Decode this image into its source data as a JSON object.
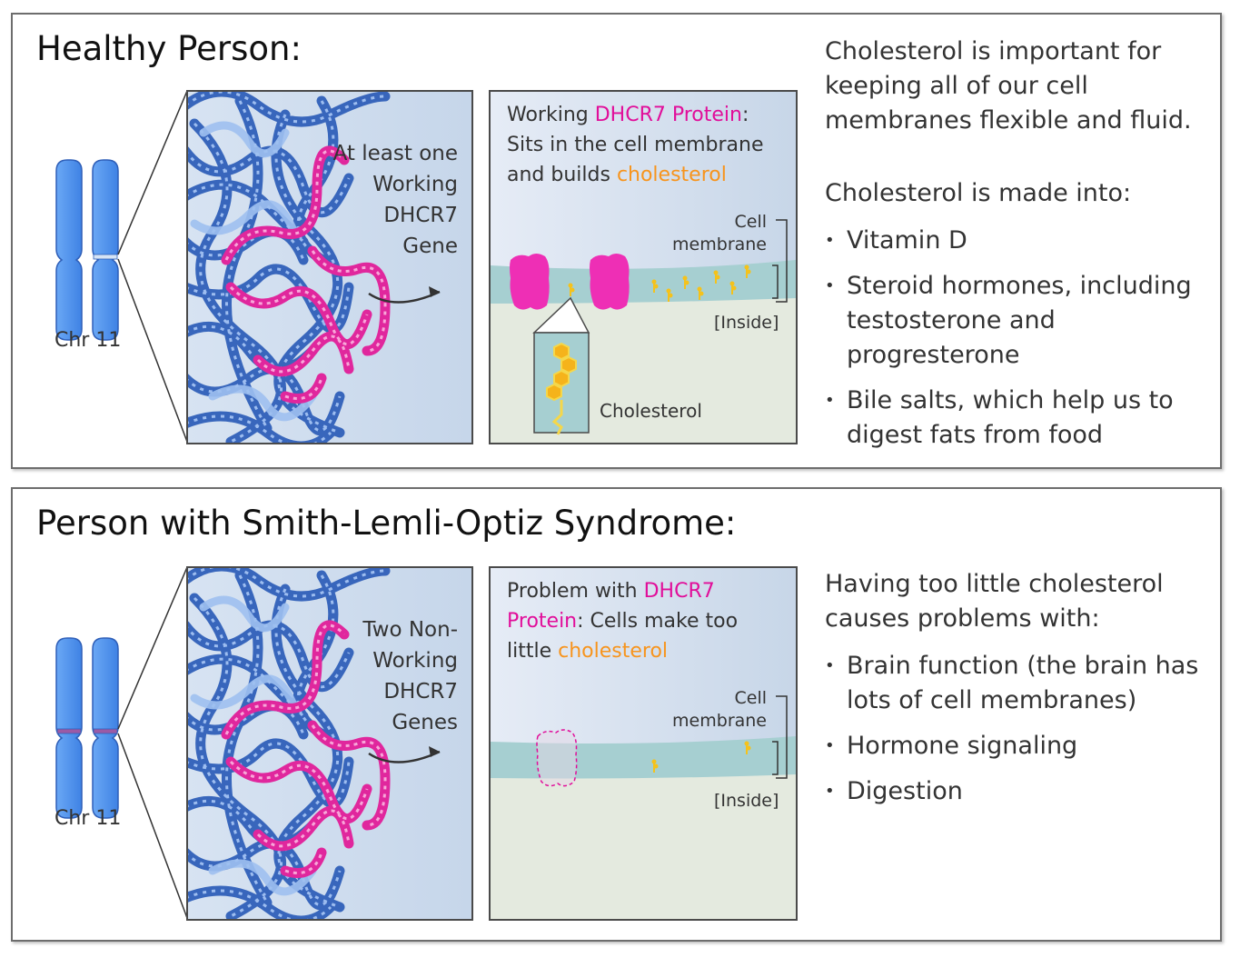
{
  "healthy": {
    "title": "Healthy Person:",
    "chromosome_label": "Chr 11",
    "gene_text": [
      "At least one",
      "Working",
      "DHCR7",
      "Gene"
    ],
    "protein_text": {
      "prefix": "Working ",
      "highlight": "DHCR7 Protein",
      "line2_lead": ":",
      "line2": "Sits in the cell membrane",
      "line3_prefix": "and builds ",
      "line3_highlight": "cholesterol"
    },
    "cell_membrane_label": [
      "Cell",
      "membrane"
    ],
    "inside_label": "[Inside]",
    "cholesterol_label": "Cholesterol",
    "right_text": "Cholesterol is important for keeping all of our cell membranes flexible and fluid.",
    "made_into_heading": "Cholesterol is made into:",
    "bullets": [
      "Vitamin D",
      "Steroid hormones, including testosterone and progresterone",
      "Bile salts, which help us to digest fats from food"
    ]
  },
  "slo": {
    "title": "Person with Smith-Lemli-Optiz Syndrome:",
    "chromosome_label": "Chr 11",
    "gene_text": [
      "Two Non-",
      "Working",
      "DHCR7",
      "Genes"
    ],
    "protein_text": {
      "prefix": "Problem with ",
      "highlight1": "DHCR7",
      "highlight2": "Protein",
      "line2_rest": ": Cells make too",
      "line3_prefix": "little ",
      "line3_highlight": "cholesterol"
    },
    "cell_membrane_label": [
      "Cell",
      "membrane"
    ],
    "inside_label": "[Inside]",
    "right_text": "Having too little cholesterol causes problems with:",
    "bullets": [
      "Brain function (the brain has lots of cell membranes)",
      "Hormone signaling",
      "Digestion"
    ]
  },
  "colors": {
    "magenta": "#e10e9a",
    "orange": "#f7941d",
    "membrane": "#a6cfd1",
    "chromosome": "#5c9cf0",
    "dna_blue": "#2f5fb8"
  }
}
